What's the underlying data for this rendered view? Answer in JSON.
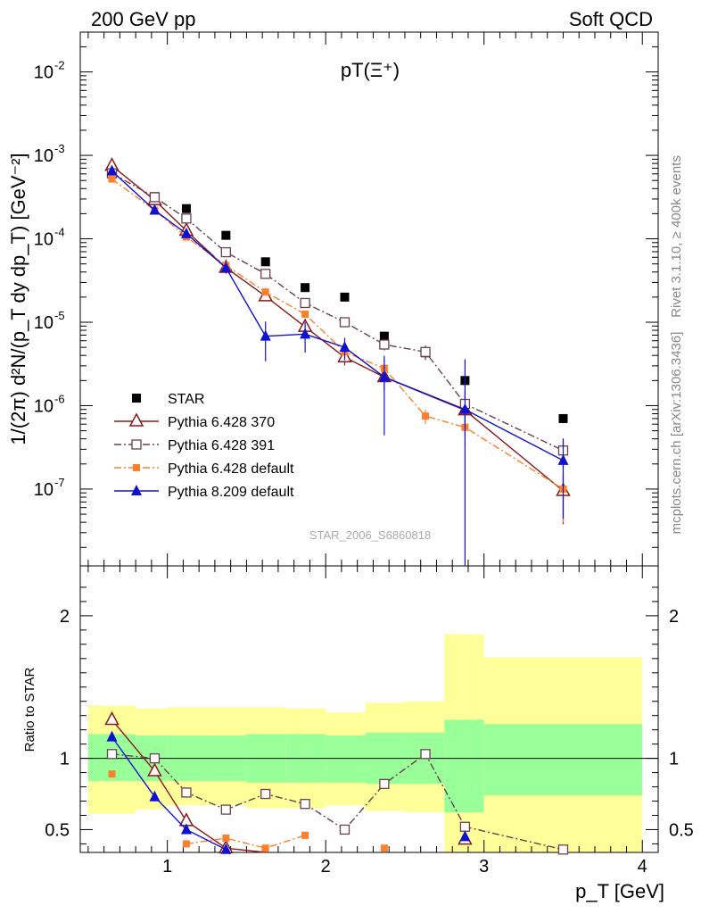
{
  "header": {
    "left": "200 GeV pp",
    "right": "Soft QCD"
  },
  "side_labels": {
    "rivet": "Rivet 3.1.10, ≥ 400k events",
    "mcplots": "mcplots.cern.ch [arXiv:1306.3436]"
  },
  "colors": {
    "star": "#000000",
    "py6_370": "#8b1a1a",
    "py6_391": "#6b4050",
    "py6_default": "#ff7f2a",
    "py8_default": "#1010d0",
    "band_inner": "#99ff99",
    "band_outer": "#ffff99"
  },
  "chart_data": [
    {
      "type": "scatter",
      "title": "pT(Ξ⁺)",
      "analysis_tag": "STAR_2006_S6860818",
      "ylabel": "1/(2π) d²N/(p_T dy dp_T) [GeV⁻²]",
      "yscale": "log",
      "ylim": [
        1.2e-08,
        0.03
      ],
      "xlim": [
        0.45,
        4.1
      ],
      "yticks": [
        "10^-7",
        "10^-6",
        "10^-5",
        "10^-4",
        "10^-3",
        "10^-2"
      ],
      "legend_position": "bottom-left",
      "x": [
        0.65,
        0.92,
        1.12,
        1.37,
        1.62,
        1.87,
        2.12,
        2.37,
        2.63,
        2.88,
        3.5
      ],
      "series": [
        {
          "name": "STAR",
          "style": "data",
          "values": [
            0.0006,
            0.00032,
            0.00023,
            0.00011,
            5.3e-05,
            2.6e-05,
            2e-05,
            6.8e-06,
            4.3e-06,
            2e-06,
            7e-07
          ],
          "errors": [
            0.04,
            0.04,
            0.04,
            0.05,
            0.05,
            0.05,
            0.06,
            0.08,
            0.15,
            0.12,
            0.12
          ]
        },
        {
          "name": "Pythia 6.428 370",
          "style": "open-triangle",
          "values": [
            0.00075,
            0.00029,
            0.000125,
            4.5e-05,
            2.05e-05,
            8.8e-06,
            3.8e-06,
            2.2e-06,
            null,
            8.8e-07,
            9.5e-08
          ],
          "errors": [
            0.03,
            0.03,
            0.05,
            0.05,
            0.06,
            0.1,
            0.2,
            0.3,
            0,
            0.5,
            0.6
          ]
        },
        {
          "name": "Pythia 6.428 391",
          "style": "open-square",
          "values": [
            0.00061,
            0.000315,
            0.000175,
            6.9e-05,
            3.8e-05,
            1.7e-05,
            1e-05,
            5.4e-06,
            4.4e-06,
            1.05e-06,
            2.9e-07
          ],
          "errors": [
            0.02,
            0.02,
            0.04,
            0.05,
            0.06,
            0.07,
            0.1,
            0.15,
            0.2,
            0.4,
            0.4
          ]
        },
        {
          "name": "Pythia 6.428 default",
          "style": "filled-square",
          "values": [
            0.00052,
            0.00022,
            0.000105,
            4.8e-05,
            2.3e-05,
            1.25e-05,
            4.4e-06,
            2.8e-06,
            7.5e-07,
            5.5e-07,
            1e-07
          ],
          "errors": [
            0.02,
            0.02,
            0.04,
            0.06,
            0.08,
            0.1,
            0.2,
            0.3,
            0.2,
            0.4,
            0.6
          ]
        },
        {
          "name": "Pythia 8.209 default",
          "style": "filled-triangle",
          "values": [
            0.00065,
            0.00022,
            0.000115,
            4.5e-05,
            6.8e-06,
            7.2e-06,
            5e-06,
            2.2e-06,
            null,
            9e-07,
            2.2e-07
          ],
          "errors": [
            0.02,
            0.03,
            0.05,
            0.15,
            0.5,
            0.4,
            0.3,
            0.8,
            0,
            3,
            0.8
          ]
        }
      ]
    },
    {
      "type": "scatter",
      "title": "",
      "xlabel": "p_T [GeV]",
      "ylabel": "Ratio to STAR",
      "xlim": [
        0.45,
        4.1
      ],
      "ylim": [
        0.34,
        2.35
      ],
      "yticks": [
        "0.5",
        "1",
        "2"
      ],
      "xticks": [
        "1",
        "2",
        "3",
        "4"
      ],
      "bands": [
        {
          "xmin": 0.5,
          "xmax": 0.8,
          "inner": [
            0.84,
            1.17
          ],
          "outer": [
            0.61,
            1.37
          ]
        },
        {
          "xmin": 0.8,
          "xmax": 1.0,
          "inner": [
            0.84,
            1.16
          ],
          "outer": [
            0.64,
            1.35
          ]
        },
        {
          "xmin": 1.0,
          "xmax": 1.25,
          "inner": [
            0.84,
            1.16
          ],
          "outer": [
            0.67,
            1.36
          ]
        },
        {
          "xmin": 1.25,
          "xmax": 1.5,
          "inner": [
            0.84,
            1.16
          ],
          "outer": [
            0.67,
            1.36
          ]
        },
        {
          "xmin": 1.5,
          "xmax": 1.75,
          "inner": [
            0.83,
            1.17
          ],
          "outer": [
            0.65,
            1.36
          ]
        },
        {
          "xmin": 1.75,
          "xmax": 2.0,
          "inner": [
            0.83,
            1.17
          ],
          "outer": [
            0.65,
            1.35
          ]
        },
        {
          "xmin": 2.0,
          "xmax": 2.25,
          "inner": [
            0.83,
            1.16
          ],
          "outer": [
            0.67,
            1.32
          ]
        },
        {
          "xmin": 2.25,
          "xmax": 2.5,
          "inner": [
            0.82,
            1.18
          ],
          "outer": [
            0.63,
            1.39
          ]
        },
        {
          "xmin": 2.5,
          "xmax": 2.75,
          "inner": [
            0.82,
            1.18
          ],
          "outer": [
            0.62,
            1.4
          ]
        },
        {
          "xmin": 2.75,
          "xmax": 3.0,
          "inner": [
            0.62,
            1.27
          ],
          "outer": [
            0.34,
            1.87
          ]
        },
        {
          "xmin": 3.0,
          "xmax": 4.0,
          "inner": [
            0.74,
            1.24
          ],
          "outer": [
            0.34,
            1.71
          ]
        }
      ],
      "series": [
        {
          "name": "Pythia 6.428 370",
          "values": [
            1.27,
            0.91,
            0.56,
            0.37,
            0.31,
            null,
            null,
            null,
            null,
            0.43,
            null
          ]
        },
        {
          "name": "Pythia 6.428 391",
          "values": [
            1.03,
            1.0,
            0.76,
            0.64,
            0.75,
            0.68,
            0.5,
            0.82,
            1.03,
            0.52,
            0.36
          ]
        },
        {
          "name": "Pythia 6.428 default",
          "values": [
            0.89,
            null,
            0.4,
            0.44,
            0.37,
            0.46,
            null,
            0.37,
            null,
            null,
            null
          ]
        },
        {
          "name": "Pythia 8.209 default",
          "values": [
            1.15,
            0.73,
            0.5,
            0.36,
            null,
            null,
            null,
            null,
            null,
            0.45,
            null
          ]
        }
      ]
    }
  ]
}
